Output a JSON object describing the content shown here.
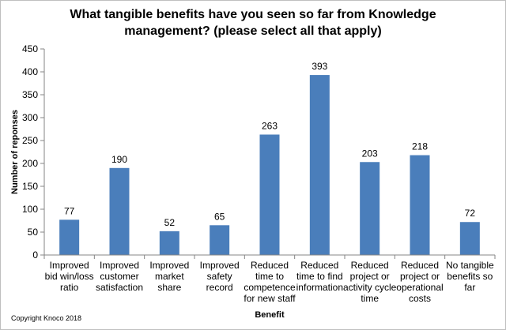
{
  "chart_data": {
    "type": "bar",
    "title": "What tangible benefits have you seen so far from Knowledge management? (please select all that apply)",
    "xlabel": "Benefit",
    "ylabel": "Number of reponses",
    "ylim": [
      0,
      450
    ],
    "yticks": [
      0,
      50,
      100,
      150,
      200,
      250,
      300,
      350,
      400,
      450
    ],
    "grid": false,
    "bar_color": "#4a7ebb",
    "categories": [
      [
        "Improved",
        "bid win/loss",
        "ratio"
      ],
      [
        "Improved",
        "customer",
        "satisfaction"
      ],
      [
        "Improved",
        "market",
        "share"
      ],
      [
        "Improved",
        "safety",
        "record"
      ],
      [
        "Reduced",
        "time to",
        "competence",
        "for new staff"
      ],
      [
        "Reduced",
        "time to find",
        "information"
      ],
      [
        "Reduced",
        "project or",
        "activity cycle",
        "time"
      ],
      [
        "Reduced",
        "project or",
        "operational",
        "costs"
      ],
      [
        "No tangible",
        "benefits so",
        "far"
      ]
    ],
    "values": [
      77,
      190,
      52,
      65,
      263,
      393,
      203,
      218,
      72
    ],
    "data_labels": [
      "77",
      "190",
      "52",
      "65",
      "263",
      "393",
      "203",
      "218",
      "72"
    ]
  },
  "footer": {
    "copyright": "Copyright Knoco 2018"
  }
}
